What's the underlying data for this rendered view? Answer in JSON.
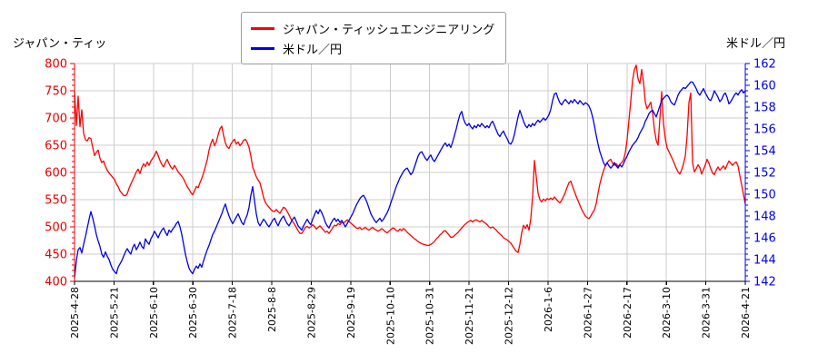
{
  "chart_data": {
    "type": "line",
    "title_left": "ジャパン・ティッ",
    "title_right": "米ドル／円",
    "grid": true,
    "legend": {
      "position": "top-center",
      "entries": [
        {
          "label": "ジャパン・ティッシュエンジニアリング",
          "color": "#ff0000"
        },
        {
          "label": "米ドル／円",
          "color": "#0000ee"
        }
      ]
    },
    "left_axis": {
      "min": 400,
      "max": 800,
      "tick_step": 50,
      "minor_step": 10,
      "color": "#ee0000",
      "tick_labels": [
        "400",
        "450",
        "500",
        "550",
        "600",
        "650",
        "700",
        "750",
        "800"
      ]
    },
    "right_axis": {
      "min": 142,
      "max": 162,
      "tick_step": 2,
      "minor_step": 0.5,
      "color": "#0000ee",
      "tick_labels": [
        "142",
        "144",
        "146",
        "148",
        "150",
        "152",
        "154",
        "156",
        "158",
        "160",
        "162"
      ]
    },
    "x_axis": {
      "tick_labels": [
        "2025-4-28",
        "2025-5-21",
        "2025-6-10",
        "2025-6-30",
        "2025-7-18",
        "2025-8-8",
        "2025-8-29",
        "2025-9-19",
        "2025-10-10",
        "2025-10-31",
        "2025-11-21",
        "2025-12-12",
        "2026-1-6",
        "2026-1-27",
        "2026-2-17",
        "2026-3-10",
        "2026-3-31",
        "2026-4-21"
      ],
      "note": "series values are evenly spaced from first to last tick"
    },
    "series": [
      {
        "name": "ジャパン・ティッシュエンジニアリング",
        "axis": "left",
        "color": "#ff0000",
        "values": [
          750,
          686,
          740,
          684,
          715,
          672,
          660,
          658,
          664,
          662,
          646,
          631,
          637,
          641,
          626,
          618,
          621,
          611,
          604,
          599,
          595,
          591,
          587,
          579,
          574,
          566,
          562,
          558,
          557,
          561,
          571,
          579,
          586,
          593,
          601,
          606,
          598,
          609,
          616,
          611,
          619,
          613,
          621,
          626,
          631,
          639,
          631,
          622,
          615,
          610,
          618,
          624,
          616,
          610,
          606,
          613,
          607,
          601,
          597,
          593,
          588,
          581,
          574,
          569,
          563,
          559,
          566,
          574,
          572,
          581,
          589,
          599,
          611,
          623,
          641,
          653,
          661,
          649,
          656,
          669,
          680,
          685,
          668,
          654,
          647,
          644,
          652,
          657,
          661,
          652,
          656,
          649,
          653,
          659,
          661,
          655,
          646,
          630,
          610,
          601,
          592,
          586,
          581,
          568,
          554,
          545,
          540,
          536,
          532,
          529,
          528,
          532,
          528,
          525,
          531,
          536,
          534,
          528,
          522,
          515,
          510,
          505,
          499,
          493,
          488,
          488,
          493,
          499,
          501,
          498,
          500,
          504,
          501,
          496,
          499,
          502,
          498,
          494,
          490,
          492,
          488,
          493,
          498,
          503,
          502,
          506,
          504,
          508,
          507,
          510,
          513,
          510,
          507,
          504,
          501,
          498,
          497,
          499,
          495,
          497,
          499,
          496,
          494,
          497,
          499,
          496,
          494,
          492,
          494,
          497,
          494,
          491,
          489,
          492,
          495,
          498,
          497,
          493,
          492,
          496,
          493,
          497,
          494,
          490,
          487,
          484,
          481,
          478,
          476,
          473,
          471,
          469,
          468,
          467,
          466,
          466,
          468,
          470,
          473,
          478,
          481,
          485,
          488,
          492,
          493,
          489,
          485,
          481,
          481,
          484,
          487,
          490,
          494,
          498,
          502,
          505,
          508,
          510,
          512,
          509,
          512,
          513,
          511,
          509,
          512,
          509,
          507,
          504,
          500,
          498,
          500,
          497,
          494,
          490,
          487,
          484,
          480,
          478,
          476,
          473,
          470,
          465,
          460,
          455,
          453,
          468,
          489,
          503,
          497,
          504,
          494,
          515,
          556,
          622,
          592,
          562,
          550,
          546,
          551,
          548,
          552,
          550,
          553,
          550,
          555,
          551,
          547,
          544,
          549,
          556,
          563,
          573,
          581,
          584,
          574,
          565,
          556,
          548,
          540,
          532,
          526,
          520,
          517,
          515,
          520,
          526,
          531,
          543,
          562,
          579,
          592,
          603,
          612,
          618,
          622,
          624,
          617,
          613,
          616,
          611,
          615,
          618,
          623,
          636,
          661,
          696,
          731,
          769,
          789,
          797,
          772,
          763,
          789,
          766,
          729,
          717,
          723,
          729,
          709,
          679,
          659,
          650,
          698,
          748,
          690,
          662,
          645,
          638,
          631,
          624,
          616,
          608,
          601,
          597,
          605,
          616,
          630,
          668,
          728,
          746,
          618,
          601,
          607,
          614,
          609,
          597,
          605,
          614,
          624,
          617,
          607,
          599,
          596,
          604,
          610,
          604,
          608,
          612,
          606,
          614,
          621,
          617,
          613,
          617,
          619,
          612,
          594,
          577,
          559,
          542
        ]
      },
      {
        "name": "米ドル／円",
        "axis": "right",
        "color": "#0000ee",
        "values": [
          142.3,
          143.9,
          144.9,
          145.1,
          144.6,
          145.4,
          146.1,
          146.9,
          147.7,
          148.4,
          147.8,
          147.1,
          146.3,
          145.7,
          145.2,
          144.5,
          144.2,
          144.7,
          144.3,
          144.0,
          143.5,
          143.1,
          142.9,
          142.7,
          143.3,
          143.6,
          143.9,
          144.3,
          144.7,
          145.0,
          144.7,
          144.5,
          145.1,
          145.4,
          144.9,
          145.2,
          145.6,
          145.2,
          145.0,
          145.9,
          145.6,
          145.4,
          145.9,
          146.2,
          146.6,
          146.3,
          146.0,
          146.4,
          146.7,
          146.9,
          146.5,
          146.2,
          146.7,
          146.5,
          146.8,
          147.0,
          147.3,
          147.5,
          147.0,
          146.3,
          145.4,
          144.5,
          143.8,
          143.2,
          142.9,
          142.7,
          143.1,
          143.4,
          143.2,
          143.6,
          143.3,
          143.9,
          144.4,
          144.9,
          145.3,
          145.8,
          146.3,
          146.6,
          147.0,
          147.4,
          147.8,
          148.2,
          148.7,
          149.1,
          148.5,
          148.0,
          147.6,
          147.3,
          147.6,
          147.9,
          148.2,
          147.8,
          147.4,
          147.2,
          147.7,
          148.1,
          148.8,
          149.9,
          150.7,
          149.4,
          148.2,
          147.4,
          147.1,
          147.4,
          147.7,
          147.5,
          147.2,
          147.0,
          147.3,
          147.6,
          147.8,
          147.4,
          147.1,
          147.5,
          147.8,
          148.0,
          147.6,
          147.3,
          147.1,
          147.4,
          147.7,
          147.9,
          147.5,
          147.1,
          146.9,
          146.7,
          147.1,
          147.4,
          147.7,
          147.4,
          147.2,
          147.7,
          148.1,
          148.5,
          148.2,
          148.6,
          148.3,
          147.9,
          147.4,
          147.1,
          146.9,
          147.3,
          147.6,
          147.8,
          147.5,
          147.7,
          147.4,
          147.6,
          147.3,
          147.0,
          147.3,
          147.6,
          147.9,
          148.2,
          148.6,
          149.0,
          149.3,
          149.6,
          149.8,
          149.9,
          149.6,
          149.2,
          148.7,
          148.2,
          147.9,
          147.6,
          147.4,
          147.6,
          147.8,
          147.5,
          147.7,
          148.0,
          148.3,
          148.7,
          149.2,
          149.7,
          150.2,
          150.7,
          151.1,
          151.5,
          151.8,
          152.1,
          152.3,
          152.4,
          152.1,
          151.8,
          152.0,
          152.5,
          153.0,
          153.5,
          153.8,
          153.9,
          153.6,
          153.3,
          153.1,
          153.4,
          153.6,
          153.2,
          153.0,
          153.3,
          153.6,
          153.9,
          154.2,
          154.5,
          154.7,
          154.4,
          154.6,
          154.3,
          154.8,
          155.4,
          156.0,
          156.7,
          157.3,
          157.6,
          156.9,
          156.5,
          156.3,
          156.5,
          156.2,
          156.0,
          156.3,
          156.1,
          156.4,
          156.2,
          156.5,
          156.3,
          156.1,
          156.3,
          156.1,
          156.5,
          156.7,
          156.3,
          155.9,
          155.5,
          155.3,
          155.6,
          155.8,
          155.4,
          155.1,
          154.7,
          154.6,
          154.9,
          155.5,
          156.3,
          157.1,
          157.7,
          157.2,
          156.7,
          156.3,
          156.1,
          156.4,
          156.2,
          156.5,
          156.3,
          156.6,
          156.8,
          156.6,
          156.8,
          157.0,
          156.8,
          157.0,
          157.3,
          157.8,
          158.6,
          159.2,
          159.3,
          158.8,
          158.4,
          158.2,
          158.5,
          158.7,
          158.5,
          158.3,
          158.6,
          158.4,
          158.7,
          158.5,
          158.3,
          158.6,
          158.4,
          158.2,
          158.4,
          158.3,
          158.1,
          157.7,
          157.1,
          156.3,
          155.4,
          154.6,
          153.9,
          153.4,
          152.9,
          152.6,
          152.9,
          152.6,
          152.4,
          152.6,
          152.9,
          152.6,
          152.4,
          152.7,
          152.5,
          152.8,
          153.2,
          153.5,
          153.9,
          154.2,
          154.5,
          154.7,
          154.9,
          155.2,
          155.6,
          155.9,
          156.2,
          156.7,
          157.0,
          157.4,
          157.6,
          157.7,
          157.4,
          157.1,
          157.6,
          158.1,
          158.6,
          158.8,
          159.0,
          159.1,
          158.9,
          158.5,
          158.3,
          158.2,
          158.6,
          159.1,
          159.4,
          159.6,
          159.8,
          159.7,
          159.9,
          160.1,
          160.3,
          160.3,
          160.0,
          159.7,
          159.3,
          159.1,
          159.4,
          159.7,
          159.3,
          159.0,
          158.7,
          158.6,
          159.0,
          159.5,
          159.2,
          158.9,
          158.5,
          158.7,
          159.1,
          159.3,
          158.9,
          158.3,
          158.5,
          158.8,
          159.1,
          159.3,
          159.1,
          159.4,
          159.6,
          159.3,
          159.5
        ]
      }
    ],
    "colors": {
      "grid": "#cccccc",
      "bottom_spine": "#000000",
      "background": "#ffffff"
    }
  }
}
